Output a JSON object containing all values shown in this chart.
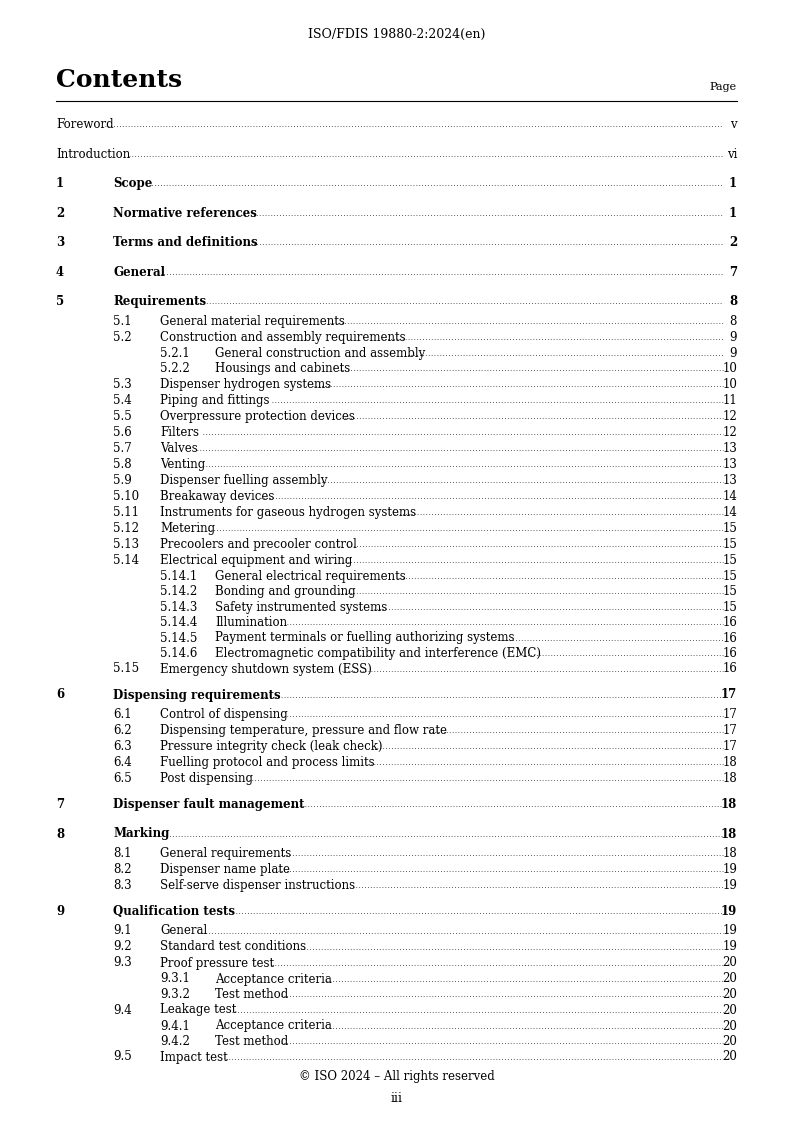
{
  "header": "ISO/FDIS 19880-2:2024(en)",
  "title": "Contents",
  "page_label": "Page",
  "footer": "© ISO 2024 – All rights reserved",
  "footer_page": "iii",
  "background_color": "#ffffff",
  "entries": [
    {
      "level": 0,
      "num": "Foreword",
      "text": "",
      "page": "v",
      "bold": false,
      "extra_before": 0
    },
    {
      "level": 0,
      "num": "Introduction",
      "text": "",
      "page": "vi",
      "bold": false,
      "extra_before": 10
    },
    {
      "level": 1,
      "num": "1",
      "text": "Scope",
      "page": "1",
      "bold": true,
      "extra_before": 10
    },
    {
      "level": 1,
      "num": "2",
      "text": "Normative references",
      "page": "1",
      "bold": true,
      "extra_before": 10
    },
    {
      "level": 1,
      "num": "3",
      "text": "Terms and definitions",
      "page": "2",
      "bold": true,
      "extra_before": 10
    },
    {
      "level": 1,
      "num": "4",
      "text": "General",
      "page": "7",
      "bold": true,
      "extra_before": 10
    },
    {
      "level": 1,
      "num": "5",
      "text": "Requirements",
      "page": "8",
      "bold": true,
      "extra_before": 10
    },
    {
      "level": 2,
      "num": "5.1",
      "text": "General material requirements",
      "page": "8",
      "bold": false,
      "extra_before": 0
    },
    {
      "level": 2,
      "num": "5.2",
      "text": "Construction and assembly requirements",
      "page": "9",
      "bold": false,
      "extra_before": 0
    },
    {
      "level": 3,
      "num": "5.2.1",
      "text": "General construction and assembly",
      "page": "9",
      "bold": false,
      "extra_before": 0
    },
    {
      "level": 3,
      "num": "5.2.2",
      "text": "Housings and cabinets",
      "page": "10",
      "bold": false,
      "extra_before": 0
    },
    {
      "level": 2,
      "num": "5.3",
      "text": "Dispenser hydrogen systems",
      "page": "10",
      "bold": false,
      "extra_before": 0
    },
    {
      "level": 2,
      "num": "5.4",
      "text": "Piping and fittings",
      "page": "11",
      "bold": false,
      "extra_before": 0
    },
    {
      "level": 2,
      "num": "5.5",
      "text": "Overpressure protection devices",
      "page": "12",
      "bold": false,
      "extra_before": 0
    },
    {
      "level": 2,
      "num": "5.6",
      "text": "Filters",
      "page": "12",
      "bold": false,
      "extra_before": 0
    },
    {
      "level": 2,
      "num": "5.7",
      "text": "Valves",
      "page": "13",
      "bold": false,
      "extra_before": 0
    },
    {
      "level": 2,
      "num": "5.8",
      "text": "Venting",
      "page": "13",
      "bold": false,
      "extra_before": 0
    },
    {
      "level": 2,
      "num": "5.9",
      "text": "Dispenser fuelling assembly",
      "page": "13",
      "bold": false,
      "extra_before": 0
    },
    {
      "level": 2,
      "num": "5.10",
      "text": "Breakaway devices",
      "page": "14",
      "bold": false,
      "extra_before": 0
    },
    {
      "level": 2,
      "num": "5.11",
      "text": "Instruments for gaseous hydrogen systems",
      "page": "14",
      "bold": false,
      "extra_before": 0
    },
    {
      "level": 2,
      "num": "5.12",
      "text": "Metering",
      "page": "15",
      "bold": false,
      "extra_before": 0
    },
    {
      "level": 2,
      "num": "5.13",
      "text": "Precoolers and precooler control",
      "page": "15",
      "bold": false,
      "extra_before": 0
    },
    {
      "level": 2,
      "num": "5.14",
      "text": "Electrical equipment and wiring",
      "page": "15",
      "bold": false,
      "extra_before": 0
    },
    {
      "level": 3,
      "num": "5.14.1",
      "text": "General electrical requirements",
      "page": "15",
      "bold": false,
      "extra_before": 0
    },
    {
      "level": 3,
      "num": "5.14.2",
      "text": "Bonding and grounding",
      "page": "15",
      "bold": false,
      "extra_before": 0
    },
    {
      "level": 3,
      "num": "5.14.3",
      "text": "Safety instrumented systems",
      "page": "15",
      "bold": false,
      "extra_before": 0
    },
    {
      "level": 3,
      "num": "5.14.4",
      "text": "Illumination",
      "page": "16",
      "bold": false,
      "extra_before": 0
    },
    {
      "level": 3,
      "num": "5.14.5",
      "text": "Payment terminals or fuelling authorizing systems",
      "page": "16",
      "bold": false,
      "extra_before": 0
    },
    {
      "level": 3,
      "num": "5.14.6",
      "text": "Electromagnetic compatibility and interference (EMC)",
      "page": "16",
      "bold": false,
      "extra_before": 0
    },
    {
      "level": 2,
      "num": "5.15",
      "text": "Emergency shutdown system (ESS)",
      "page": "16",
      "bold": false,
      "extra_before": 0
    },
    {
      "level": 1,
      "num": "6",
      "text": "Dispensing requirements",
      "page": "17",
      "bold": true,
      "extra_before": 10
    },
    {
      "level": 2,
      "num": "6.1",
      "text": "Control of dispensing",
      "page": "17",
      "bold": false,
      "extra_before": 0
    },
    {
      "level": 2,
      "num": "6.2",
      "text": "Dispensing temperature, pressure and flow rate",
      "page": "17",
      "bold": false,
      "extra_before": 0
    },
    {
      "level": 2,
      "num": "6.3",
      "text": "Pressure integrity check (leak check)",
      "page": "17",
      "bold": false,
      "extra_before": 0
    },
    {
      "level": 2,
      "num": "6.4",
      "text": "Fuelling protocol and process limits",
      "page": "18",
      "bold": false,
      "extra_before": 0
    },
    {
      "level": 2,
      "num": "6.5",
      "text": "Post dispensing",
      "page": "18",
      "bold": false,
      "extra_before": 0
    },
    {
      "level": 1,
      "num": "7",
      "text": "Dispenser fault management",
      "page": "18",
      "bold": true,
      "extra_before": 10
    },
    {
      "level": 1,
      "num": "8",
      "text": "Marking",
      "page": "18",
      "bold": true,
      "extra_before": 10
    },
    {
      "level": 2,
      "num": "8.1",
      "text": "General requirements",
      "page": "18",
      "bold": false,
      "extra_before": 0
    },
    {
      "level": 2,
      "num": "8.2",
      "text": "Dispenser name plate",
      "page": "19",
      "bold": false,
      "extra_before": 0
    },
    {
      "level": 2,
      "num": "8.3",
      "text": "Self-serve dispenser instructions",
      "page": "19",
      "bold": false,
      "extra_before": 0
    },
    {
      "level": 1,
      "num": "9",
      "text": "Qualification tests",
      "page": "19",
      "bold": true,
      "extra_before": 10
    },
    {
      "level": 2,
      "num": "9.1",
      "text": "General",
      "page": "19",
      "bold": false,
      "extra_before": 0
    },
    {
      "level": 2,
      "num": "9.2",
      "text": "Standard test conditions",
      "page": "19",
      "bold": false,
      "extra_before": 0
    },
    {
      "level": 2,
      "num": "9.3",
      "text": "Proof pressure test",
      "page": "20",
      "bold": false,
      "extra_before": 0
    },
    {
      "level": 3,
      "num": "9.3.1",
      "text": "Acceptance criteria",
      "page": "20",
      "bold": false,
      "extra_before": 0
    },
    {
      "level": 3,
      "num": "9.3.2",
      "text": "Test method",
      "page": "20",
      "bold": false,
      "extra_before": 0
    },
    {
      "level": 2,
      "num": "9.4",
      "text": "Leakage test",
      "page": "20",
      "bold": false,
      "extra_before": 0
    },
    {
      "level": 3,
      "num": "9.4.1",
      "text": "Acceptance criteria",
      "page": "20",
      "bold": false,
      "extra_before": 0
    },
    {
      "level": 3,
      "num": "9.4.2",
      "text": "Test method",
      "page": "20",
      "bold": false,
      "extra_before": 0
    },
    {
      "level": 2,
      "num": "9.5",
      "text": "Impact test",
      "page": "20",
      "bold": false,
      "extra_before": 0
    }
  ]
}
